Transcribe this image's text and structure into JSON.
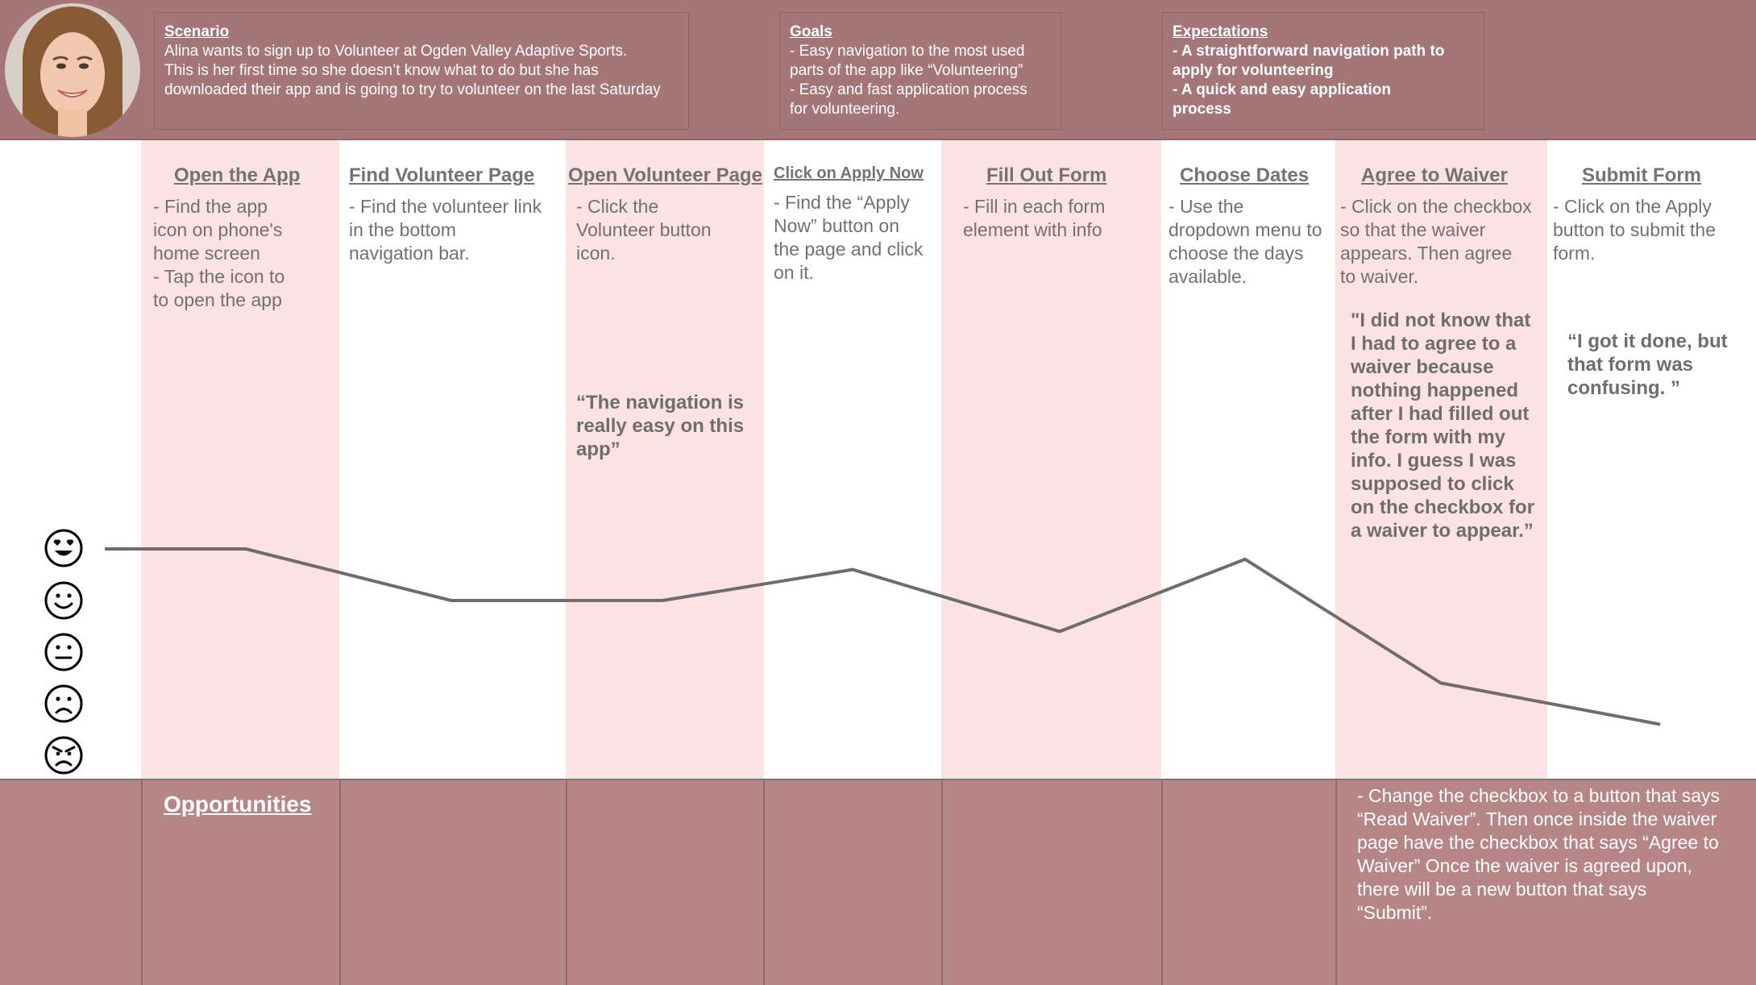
{
  "header": {
    "scenario": {
      "heading": "Scenario",
      "body": "Alina wants to sign up to Volunteer at Ogden Valley Adaptive Sports.\nThis is her first time so she doesn’t know what to do but she has\ndownloaded their app and is going to try to volunteer on the last Saturday"
    },
    "goals": {
      "heading": "Goals",
      "body": " - Easy navigation to the most used\nparts of the app like “Volunteering”\n - Easy and fast application process\nfor volunteering."
    },
    "expectations": {
      "heading": "Expectations",
      "body": "- A straightforward navigation path to\napply for volunteering\n- A quick and easy application\nprocess"
    }
  },
  "stages": [
    {
      "title": "Open the App",
      "text": "- Find the app\nicon on phone's\nhome screen\n- Tap the icon to\nto open the app"
    },
    {
      "title": "Find Volunteer Page",
      "text": "- Find the volunteer link\nin the bottom\nnavigation bar."
    },
    {
      "title": "Open Volunteer Page",
      "text": "- Click the\nVolunteer button\nicon."
    },
    {
      "title": "Click on Apply Now",
      "text": "- Find the “Apply\nNow” button on\nthe page and click\non it."
    },
    {
      "title": "Fill Out Form",
      "text": "- Fill in each form\nelement with info"
    },
    {
      "title": "Choose Dates",
      "text": "- Use the\ndropdown menu to\nchoose the days\navailable."
    },
    {
      "title": "Agree to Waiver",
      "text": "- Click on the checkbox\nso that the waiver\nappears. Then agree\nto waiver."
    },
    {
      "title": "Submit Form",
      "text": "- Click on the Apply\nbutton to submit the\nform."
    }
  ],
  "quotes": {
    "navigation": "“The navigation is\nreally easy on this\napp”",
    "waiver": "\"I did not know that\nI had to agree to a\nwaiver because\nnothing happened\nafter I had filled out\nthe form with my\ninfo. I guess I was\nsupposed to click\non the checkbox for\na waiver to appear.”",
    "submit": "“I got it done, but\nthat form was\nconfusing. ”"
  },
  "emotion_scale": [
    "love-eyes-face-icon",
    "smiling-face-icon",
    "neutral-face-icon",
    "frowning-face-icon",
    "angry-face-icon"
  ],
  "chart_data": {
    "type": "line",
    "x": [
      "Open the App",
      "Find Volunteer Page",
      "Open Volunteer Page",
      "Click on Apply Now",
      "Fill Out Form",
      "Choose Dates",
      "Agree to Waiver",
      "Submit Form"
    ],
    "series": [
      {
        "values": [
          5,
          4,
          4,
          4.6,
          3.4,
          4.8,
          2.4,
          1.6
        ]
      }
    ],
    "ylim": [
      1,
      5
    ]
  },
  "opportunities": {
    "title": "Opportunities",
    "text": "- Change the checkbox to a button that says\n“Read Waiver”. Then once inside the waiver\npage have the checkbox that says “Agree to\nWaiver” Once the waiver is agreed upon,\nthere will be a new button that says\n“Submit”."
  },
  "colors": {
    "header_band": "#a47677",
    "footer_band": "#b68687",
    "stripe": "#fde2e3",
    "text_gray": "#6e6e6e",
    "line": "#6d6d6d"
  }
}
